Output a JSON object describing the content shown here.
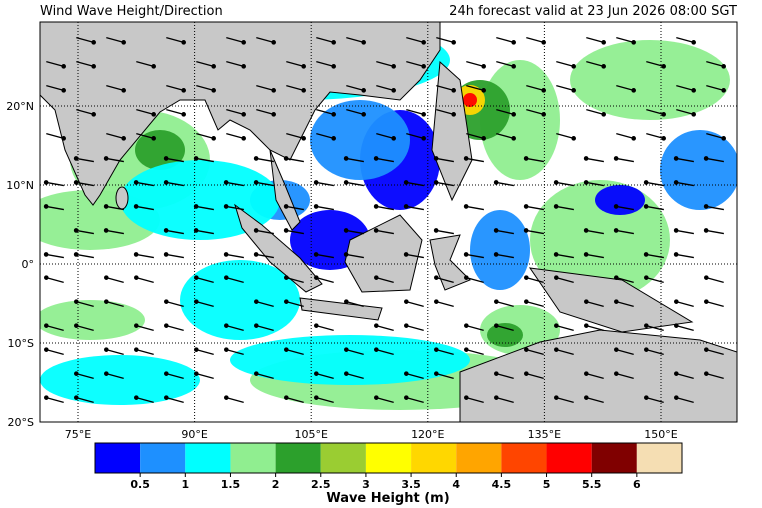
{
  "header": {
    "title": "Wind Wave Height/Direction",
    "valid": "24h forecast valid at 23 Jun 2026 08:00 SGT"
  },
  "map": {
    "lat_labels": [
      "20°N",
      "10°N",
      "0°",
      "10°S",
      "20°S"
    ],
    "lon_labels": [
      "75°E",
      "90°E",
      "105°E",
      "120°E",
      "135°E",
      "150°E"
    ]
  },
  "colorbar": {
    "colors": [
      "#0000ff",
      "#1e90ff",
      "#00ffff",
      "#90ee90",
      "#2ca02c",
      "#9acd32",
      "#ffff00",
      "#ffd700",
      "#ffa500",
      "#ff4500",
      "#ff0000",
      "#800000",
      "#f5deb3"
    ],
    "ticks": [
      0.5,
      1,
      1.5,
      2,
      2.5,
      3,
      3.5,
      4,
      4.5,
      5,
      5.5,
      6
    ],
    "label": "Wave Height (m)"
  }
}
